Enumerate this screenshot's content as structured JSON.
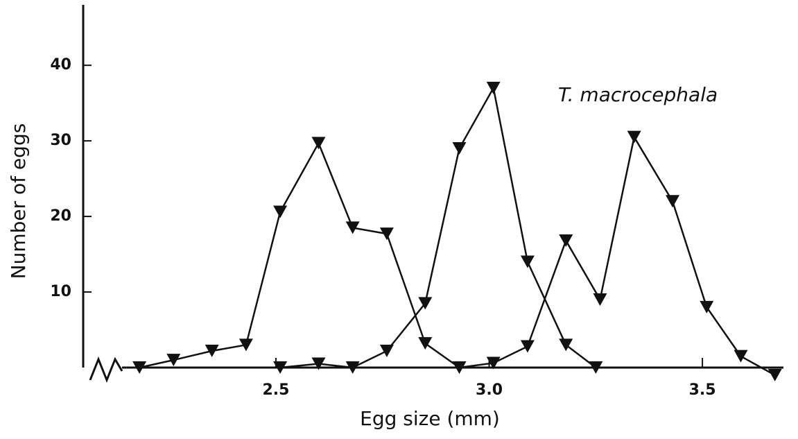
{
  "chart_data": {
    "type": "line",
    "xlabel": "Egg size (mm)",
    "ylabel": "Number of eggs",
    "annotation": "T. macrocephala",
    "xlim": [
      2.04,
      3.69
    ],
    "ylim": [
      0,
      48
    ],
    "xticks": [
      2.5,
      {
        "value": 3.0,
        "label": "3.0"
      },
      3.5
    ],
    "yticks": [
      10,
      20,
      30,
      40
    ],
    "color": "#111111",
    "series": [
      {
        "x": [
          2.18,
          2.26,
          2.35,
          2.43,
          2.51,
          2.6,
          2.68,
          2.76,
          2.85,
          2.93
        ],
        "values": [
          0,
          1,
          2.2,
          3,
          20.6,
          29.7,
          18.5,
          17.7,
          3.2,
          0
        ]
      },
      {
        "x": [
          2.51,
          2.6,
          2.68,
          2.76,
          2.85,
          2.93,
          3.01,
          3.09,
          3.18,
          3.25
        ],
        "values": [
          0,
          0.5,
          0,
          2.2,
          8.5,
          29,
          37,
          14,
          3,
          0
        ]
      },
      {
        "x": [
          2.93,
          3.01,
          3.09,
          3.18,
          3.26,
          3.34,
          3.43,
          3.51,
          3.59,
          3.67
        ],
        "values": [
          0,
          0.6,
          2.8,
          16.8,
          9,
          30.5,
          22,
          8,
          1.5,
          -1
        ]
      }
    ]
  }
}
